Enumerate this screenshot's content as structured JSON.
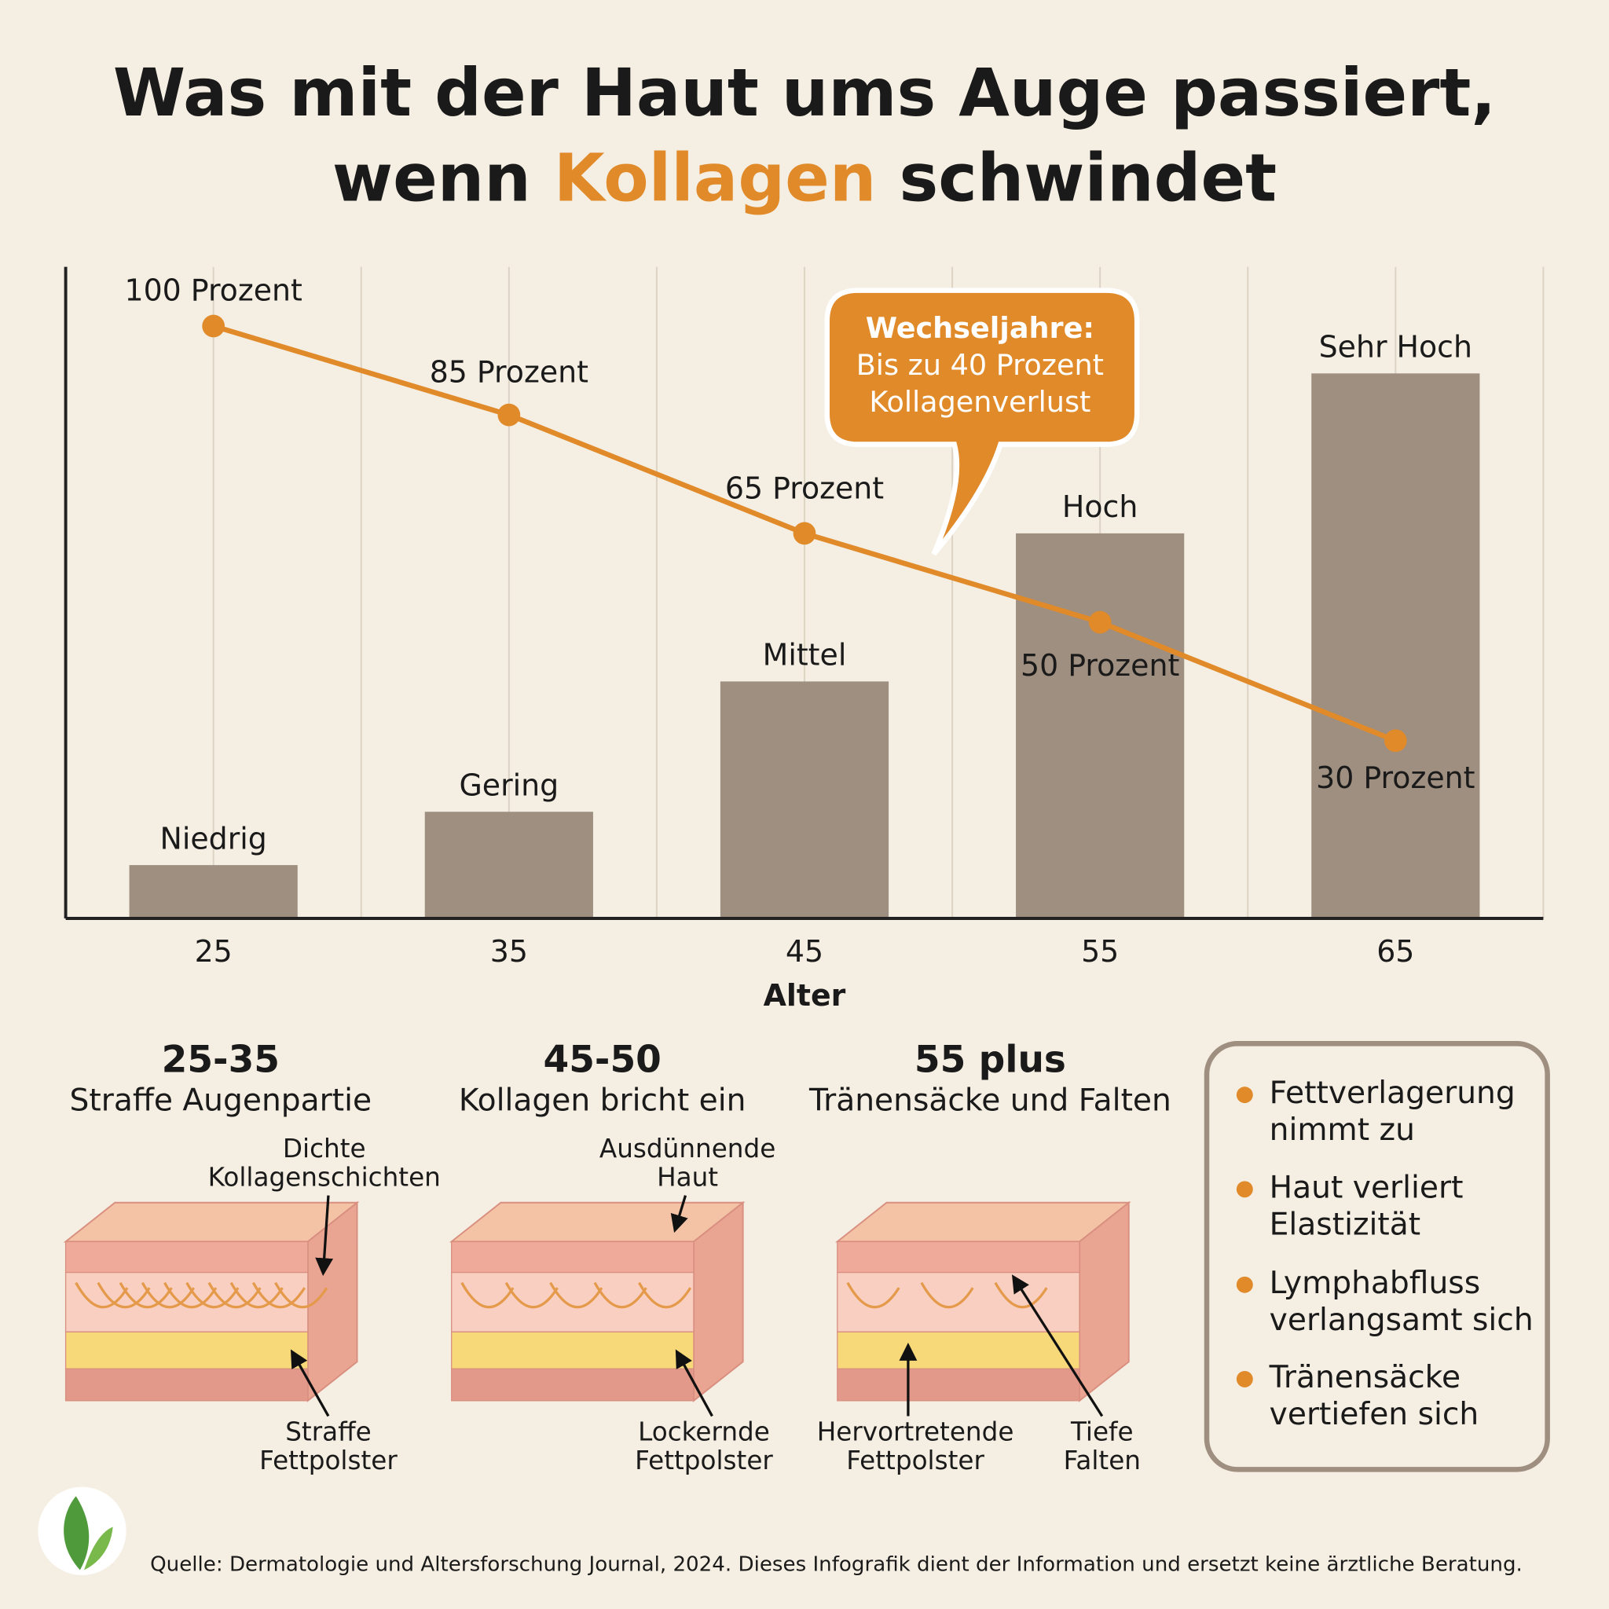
{
  "title": {
    "line1": "Was mit der Haut ums Auge passiert,",
    "line2_before": "wenn",
    "highlight": "Kollagen",
    "line2_after": "schwindet"
  },
  "chart_data": {
    "type": "combo",
    "categories": [
      "25",
      "35",
      "45",
      "55",
      "65"
    ],
    "x_label": "Alter",
    "ylim": [
      0,
      110
    ],
    "bars": {
      "values": [
        9,
        18,
        40,
        65,
        92
      ],
      "value_labels": [
        "Niedrig",
        "Gering",
        "Mittel",
        "Hoch",
        "Sehr Hoch"
      ],
      "color": "#9e8f80"
    },
    "line": {
      "values": [
        100,
        85,
        65,
        50,
        30
      ],
      "value_labels": [
        "100 Prozent",
        "85 Prozent",
        "65 Prozent",
        "50 Prozent",
        "30 Prozent"
      ],
      "color": "#e08a2a"
    },
    "annotation": {
      "title": "Wechseljahre:",
      "lines": [
        "Bis zu 40 Prozent",
        "Kollagenverlust"
      ]
    }
  },
  "stages": [
    {
      "range": "25-35",
      "title": "Straffe Augenpartie",
      "labels": [
        {
          "lines": [
            "Dichte",
            "Kollagenschichten"
          ]
        },
        {
          "lines": [
            "Straffe",
            "Fettpolster"
          ]
        }
      ]
    },
    {
      "range": "45-50",
      "title": "Kollagen bricht ein",
      "labels": [
        {
          "lines": [
            "Ausdünnende",
            "Haut"
          ]
        },
        {
          "lines": [
            "Lockernde",
            "Fettpolster"
          ]
        }
      ]
    },
    {
      "range": "55 plus",
      "title": "Tränensäcke und Falten",
      "labels": [
        {
          "lines": [
            "Hervortretende",
            "Fettpolster"
          ]
        },
        {
          "lines": [
            "Tiefe",
            "Falten"
          ]
        }
      ]
    }
  ],
  "bullets": [
    {
      "lines": [
        "Fettverlagerung",
        "nimmt zu"
      ]
    },
    {
      "lines": [
        "Haut verliert",
        "Elastizität"
      ]
    },
    {
      "lines": [
        "Lymphabfluss",
        "verlangsamt sich"
      ]
    },
    {
      "lines": [
        "Tränensäcke",
        "vertiefen sich"
      ]
    }
  ],
  "source": "Quelle: Dermatologie und Altersforschung Journal, 2024. Dieses Infografik dient der Information und ersetzt keine ärztliche Beratung."
}
